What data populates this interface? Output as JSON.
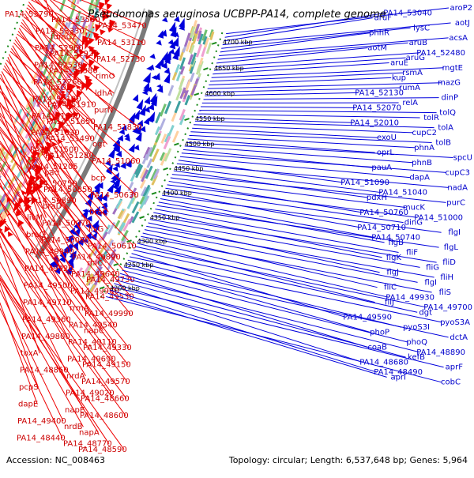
{
  "title": "Pseudomonas aeruginosa UCBPP-PA14, complete genome",
  "footer": {
    "accession": "Accession: NC_008463",
    "topology": "Topology: circular; Length: 6,537,648 bp; Genes: 5,964"
  },
  "colors": {
    "forward": "#ee0000",
    "reverse": "#0000dd",
    "backbone": "#7a7a7a",
    "dotted_ring": "#1a8a1a"
  },
  "kbp_ticks": [
    "4700 kbp",
    "4650 kbp",
    "4600 kbp",
    "4550 kbp",
    "4500 kbp",
    "4450 kbp",
    "4400 kbp",
    "4350 kbp",
    "4300 kbp",
    "4250 kbp",
    "4200 kbp"
  ],
  "left_labels": [
    "PA14_53790",
    "PA14_53560",
    "PA14_53470",
    "PA14_53330",
    "fumC2",
    "PA14_53110",
    "PA14_52960",
    "PA14_52920",
    "PA14_52730",
    "PA14_52530",
    "PA14_52380",
    "rimO",
    "PA14_52260",
    "lpxO2",
    "ldhA",
    "PA14_52120",
    "PA14_51910",
    "purN",
    "PA14_51840",
    "PA14_51650",
    "PA14_51830",
    "PA14_51630",
    "PA14_51490",
    "ogt",
    "PA14_51500",
    "PA14_51280",
    "PA14_51060",
    "PA14_51205",
    "pac",
    "bcp",
    "PA14_50750",
    "PA14_50850",
    "PA14_50630",
    "PA14_50890",
    "braD",
    "braC",
    "livM",
    "PA14_50070",
    "livG",
    "braG",
    "PA14_50060",
    "PA14_50610",
    "PA14_49940",
    "PA14_49890",
    "rhlC",
    "PA14_49920",
    "PA14_49640",
    "PA14_49730",
    "PA14_49500",
    "PA14_49960",
    "PA14_49530",
    "PA14_49710",
    "rrmA",
    "PA14_49990",
    "PA14_49360",
    "PA14_49540",
    "napC",
    "PA14_49800",
    "PA14_49110",
    "PA14_49330",
    "toxA",
    "PA14_49690",
    "PA14_49150",
    "PA14_48850",
    "nrdA",
    "PA14_49570",
    "pcpS",
    "PA14_49020",
    "PA14_48660",
    "dapE",
    "napE",
    "PA14_48600",
    "PA14_49400",
    "nrdB",
    "napA",
    "PA14_48440",
    "PA14_48770",
    "PA14_48590"
  ],
  "right_labels": [
    "aroP2",
    "PA14_53040",
    "aruF",
    "aotJ",
    "lysC",
    "phhR",
    "acsA",
    "aruB",
    "aotM",
    "PA14_52480",
    "aruG",
    "aruE",
    "mgtE",
    "rsmA",
    "kup",
    "mazG",
    "rumA",
    "PA14_52130",
    "dinP",
    "relA",
    "PA14_52070",
    "tolQ",
    "tolR",
    "PA14_52010",
    "tolA",
    "cupC2",
    "exoU",
    "tolB",
    "phnA",
    "oprL",
    "spcU",
    "phnB",
    "pauA",
    "cupC3",
    "dapA",
    "PA14_51090",
    "nadA",
    "PA14_51040",
    "pdxH",
    "purC",
    "mucK",
    "PA14_50760",
    "PA14_51000",
    "dinG",
    "PA14_50710",
    "flgI",
    "PA14_50740",
    "flgB",
    "flgL",
    "fliF",
    "flgK",
    "fliD",
    "fliG",
    "flgJ",
    "fliH",
    "flgI",
    "fliC",
    "fliS",
    "PA14_49930",
    "fliJ",
    "PA14_49700",
    "dgt",
    "PA14_49590",
    "pyoS3A",
    "pyoS3I",
    "phoP",
    "dctA",
    "phoQ",
    "coaB",
    "PA14_48890",
    "kefB",
    "PA14_48680",
    "aprF",
    "PA14_48490",
    "aprI",
    "cobC"
  ]
}
